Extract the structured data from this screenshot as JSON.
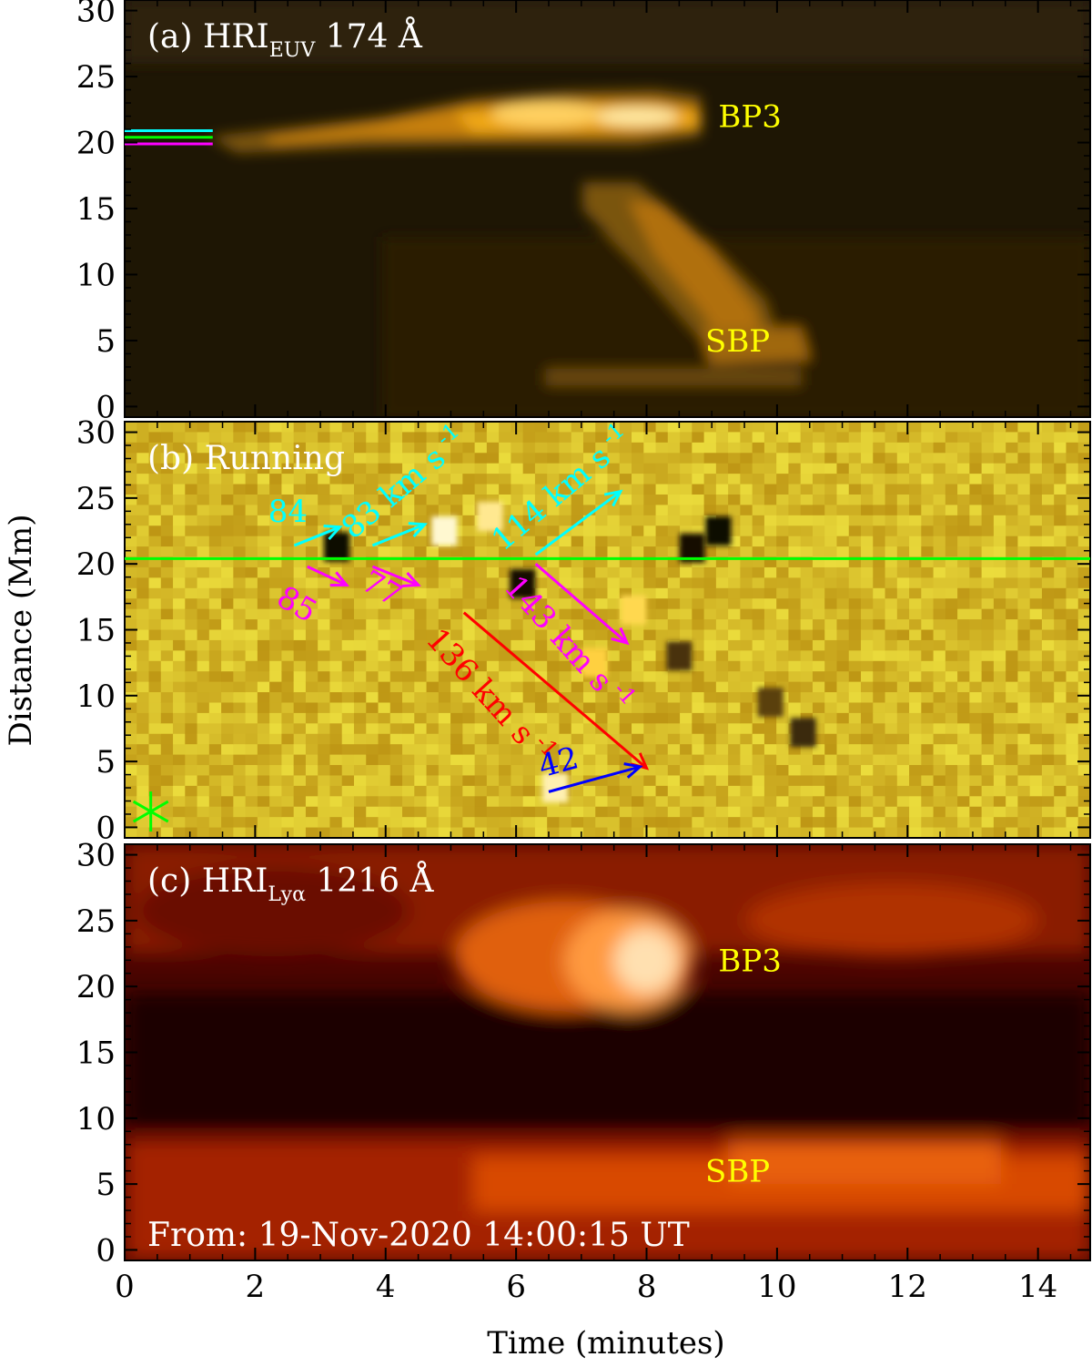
{
  "figure": {
    "y_axis_label": "Distance (Mm)",
    "x_axis_label": "Time (minutes)",
    "start_time_text": "From: 19-Nov-2020 14:00:15 UT"
  },
  "chart_data": [
    {
      "type": "heatmap",
      "panel_label": "(a) HRI",
      "panel_label_sub": "EUV",
      "panel_label_suffix": " 174 Å",
      "colormap": "gold",
      "colors": [
        "#000000",
        "#3a2a08",
        "#8a5a10",
        "#f0a010",
        "#fff0b0"
      ],
      "xlim": [
        0,
        14.8
      ],
      "ylim": [
        -0.8,
        30.8
      ],
      "x_ticks": [
        0,
        2,
        4,
        6,
        8,
        10,
        12,
        14
      ],
      "y_ticks": [
        0,
        5,
        10,
        15,
        20,
        25,
        30
      ],
      "y_tick_labels": [
        "0",
        "5",
        "10",
        "15",
        "20",
        "25",
        "30"
      ],
      "features": [
        {
          "name": "BP3 brightening",
          "t_start": 2.0,
          "t_end": 8.8,
          "distance": 21.5
        },
        {
          "name": "SBP track",
          "t_start": 6.5,
          "t_end": 10.5,
          "distance_start": 15,
          "distance_end": 4
        }
      ],
      "annotations": [
        {
          "text": "BP3",
          "t": 9.1,
          "distance": 22,
          "color": "#ffff00"
        },
        {
          "text": "SBP",
          "t": 8.9,
          "distance": 5,
          "color": "#ffff00"
        }
      ],
      "reference_lines": [
        {
          "distance": 20.9,
          "t_start": 0,
          "t_end": 1.35,
          "color": "#00ffff"
        },
        {
          "distance": 20.4,
          "t_start": 0,
          "t_end": 1.35,
          "color": "#00ff00"
        },
        {
          "distance": 19.9,
          "t_start": 0,
          "t_end": 1.35,
          "color": "#ff00ff"
        }
      ]
    },
    {
      "type": "heatmap",
      "panel_label": "(b) Running",
      "colormap": "gold-difference",
      "colors": [
        "#000000",
        "#7a5a10",
        "#d8a020",
        "#fff4c0"
      ],
      "xlim": [
        0,
        14.8
      ],
      "ylim": [
        -0.8,
        30.8
      ],
      "x_ticks": [
        0,
        2,
        4,
        6,
        8,
        10,
        12,
        14
      ],
      "y_ticks": [
        0,
        5,
        10,
        15,
        20,
        25,
        30
      ],
      "y_tick_labels": [
        "0",
        "5",
        "10",
        "15",
        "20",
        "25",
        "30"
      ],
      "horizontal_line": {
        "distance": 20.4,
        "color": "#00ff00"
      },
      "marker": {
        "symbol": "asterisk",
        "t": 0.4,
        "distance": 1.2,
        "color": "#00ff00"
      },
      "velocity_fits": [
        {
          "label": "84",
          "t_start": 2.6,
          "d_start": 21.4,
          "t_end": 3.3,
          "d_end": 22.8,
          "color": "#00ffff",
          "label_t": 2.2,
          "label_d": 23.2,
          "label_angle": 0
        },
        {
          "label": "83 km s",
          "label_sup": "-1",
          "t_start": 3.8,
          "d_start": 21.4,
          "t_end": 4.6,
          "d_end": 23.0,
          "color": "#00ffff",
          "label_t": 3.5,
          "label_d": 21.8,
          "label_angle": -40
        },
        {
          "label": "114 km s",
          "label_sup": "-1",
          "t_start": 6.3,
          "d_start": 20.7,
          "t_end": 7.6,
          "d_end": 25.5,
          "color": "#00ffff",
          "label_t": 5.8,
          "label_d": 20.9,
          "label_angle": -40
        },
        {
          "label": "85",
          "t_start": 2.8,
          "d_start": 19.8,
          "t_end": 3.4,
          "d_end": 18.4,
          "color": "#ff00ff",
          "label_t": 2.3,
          "label_d": 17.0,
          "label_angle": 30
        },
        {
          "label": "77",
          "t_start": 3.8,
          "d_start": 19.8,
          "t_end": 4.5,
          "d_end": 18.4,
          "color": "#ff00ff",
          "label_t": 3.6,
          "label_d": 18.2,
          "label_angle": 30
        },
        {
          "label": "143 km s",
          "label_sup": "-1",
          "t_start": 6.3,
          "d_start": 20.0,
          "t_end": 7.7,
          "d_end": 14.0,
          "color": "#ff00ff",
          "label_t": 5.8,
          "label_d": 18.2,
          "label_angle": 48
        },
        {
          "label": "136 km s",
          "label_sup": "-1",
          "t_start": 5.2,
          "d_start": 16.3,
          "t_end": 8.0,
          "d_end": 4.5,
          "color": "#ff0000",
          "label_t": 4.6,
          "label_d": 14.2,
          "label_angle": 48
        },
        {
          "label": "42",
          "t_start": 6.5,
          "d_start": 2.7,
          "t_end": 7.9,
          "d_end": 4.6,
          "color": "#0000ff",
          "label_t": 6.4,
          "label_d": 3.8,
          "label_angle": -15
        }
      ]
    },
    {
      "type": "heatmap",
      "panel_label": "(c) HRI",
      "panel_label_sub": "Lyα",
      "panel_label_suffix": " 1216 Å",
      "colormap": "red-temperature",
      "colors": [
        "#000000",
        "#3a0000",
        "#8a1000",
        "#e05000",
        "#ffb060",
        "#ffffff"
      ],
      "xlim": [
        0,
        14.8
      ],
      "ylim": [
        -0.8,
        30.8
      ],
      "x_ticks": [
        0,
        2,
        4,
        6,
        8,
        10,
        12,
        14
      ],
      "x_tick_labels": [
        "0",
        "2",
        "4",
        "6",
        "8",
        "10",
        "12",
        "14"
      ],
      "y_ticks": [
        0,
        5,
        10,
        15,
        20,
        25,
        30
      ],
      "y_tick_labels": [
        "0",
        "5",
        "10",
        "15",
        "20",
        "25",
        "30"
      ],
      "features": [
        {
          "name": "BP3 brightening",
          "t_start": 5.0,
          "t_end": 9.5,
          "distance": 22
        },
        {
          "name": "SBP band",
          "t_start": 0,
          "t_end": 14.8,
          "distance": 5
        }
      ],
      "annotations": [
        {
          "text": "BP3",
          "t": 9.1,
          "distance": 22,
          "color": "#ffff00"
        },
        {
          "text": "SBP",
          "t": 8.9,
          "distance": 6,
          "color": "#ffff00"
        }
      ]
    }
  ]
}
